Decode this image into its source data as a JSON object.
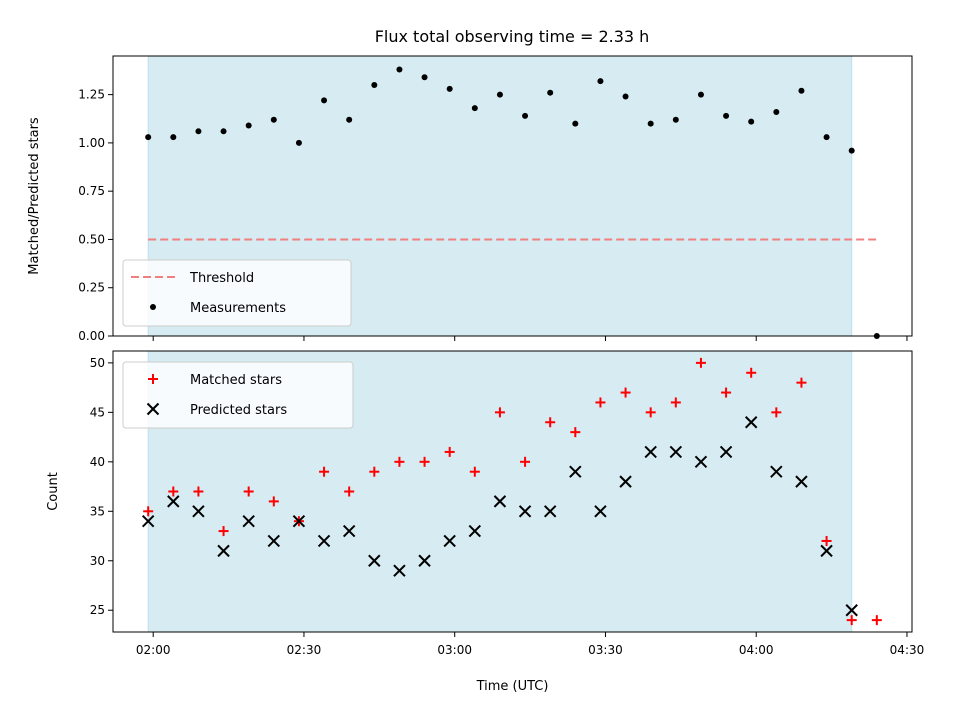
{
  "figure": {
    "title": "Flux total observing time = 2.33 h",
    "xlabel": "Time (UTC)",
    "x_tick_labels": [
      "02:00",
      "02:30",
      "03:00",
      "03:30",
      "04:00",
      "04:30"
    ]
  },
  "chart_data": [
    {
      "type": "scatter",
      "panel": "top",
      "ylabel": "Matched/Predicted stars",
      "xlim_minutes_since_0200": [
        -8,
        151
      ],
      "ylim": [
        0,
        1.45
      ],
      "y_ticks": [
        "0.00",
        "0.25",
        "0.50",
        "0.75",
        "1.00",
        "1.25"
      ],
      "y_tick_values": [
        0,
        0.25,
        0.5,
        0.75,
        1.0,
        1.25
      ],
      "shaded_region_x_minutes": [
        -1,
        139
      ],
      "shaded_color": "#add8e6",
      "threshold": {
        "name": "Threshold",
        "value": 0.5,
        "x_range_minutes": [
          -1,
          144
        ],
        "color": "#f08080"
      },
      "series": [
        {
          "name": "Measurements",
          "color": "#000000",
          "marker": "dot",
          "x_minutes": [
            -1,
            4,
            9,
            14,
            19,
            24,
            29,
            34,
            39,
            44,
            49,
            54,
            59,
            64,
            69,
            74,
            79,
            84,
            89,
            94,
            99,
            104,
            109,
            114,
            119,
            124,
            129,
            134,
            139,
            144
          ],
          "values": [
            1.03,
            1.03,
            1.06,
            1.06,
            1.09,
            1.12,
            1.0,
            1.22,
            1.12,
            1.3,
            1.38,
            1.34,
            1.28,
            1.18,
            1.25,
            1.14,
            1.26,
            1.1,
            1.32,
            1.24,
            1.1,
            1.12,
            1.25,
            1.14,
            1.11,
            1.16,
            1.27,
            1.03,
            0.96,
            0.0
          ]
        }
      ],
      "legend_placement": "lower-left"
    },
    {
      "type": "scatter",
      "panel": "bottom",
      "ylabel": "Count",
      "xlim_minutes_since_0200": [
        -8,
        151
      ],
      "ylim": [
        22.8,
        51.2
      ],
      "y_ticks": [
        "25",
        "30",
        "35",
        "40",
        "45",
        "50"
      ],
      "y_tick_values": [
        25,
        30,
        35,
        40,
        45,
        50
      ],
      "shaded_region_x_minutes": [
        -1,
        139
      ],
      "shaded_color": "#add8e6",
      "series": [
        {
          "name": "Matched stars",
          "color": "#ff0000",
          "marker": "plus",
          "x_minutes": [
            -1,
            4,
            9,
            14,
            19,
            24,
            29,
            34,
            39,
            44,
            49,
            54,
            59,
            64,
            69,
            74,
            79,
            84,
            89,
            94,
            99,
            104,
            109,
            114,
            119,
            124,
            129,
            134,
            139,
            144
          ],
          "values": [
            35,
            37,
            37,
            33,
            37,
            36,
            34,
            39,
            37,
            39,
            40,
            40,
            41,
            39,
            45,
            40,
            44,
            43,
            46,
            47,
            45,
            46,
            50,
            47,
            49,
            45,
            48,
            32,
            24,
            24
          ]
        },
        {
          "name": "Predicted stars",
          "color": "#000000",
          "marker": "x",
          "x_minutes": [
            -1,
            4,
            9,
            14,
            19,
            24,
            29,
            34,
            39,
            44,
            49,
            54,
            59,
            64,
            69,
            74,
            79,
            84,
            89,
            94,
            99,
            104,
            109,
            114,
            119,
            124,
            129,
            134,
            139
          ],
          "values": [
            34,
            36,
            35,
            31,
            34,
            32,
            34,
            32,
            33,
            30,
            29,
            30,
            32,
            33,
            36,
            35,
            35,
            39,
            35,
            38,
            41,
            41,
            40,
            41,
            44,
            39,
            38,
            31,
            25
          ]
        }
      ],
      "legend_placement": "upper-left"
    }
  ]
}
